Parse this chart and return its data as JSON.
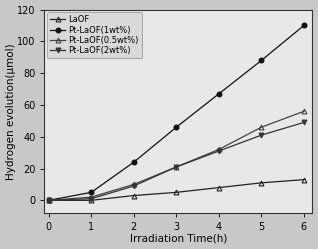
{
  "x": [
    0,
    1,
    2,
    3,
    4,
    5,
    6
  ],
  "series": [
    {
      "label": "LaOF",
      "y": [
        0,
        0,
        3,
        5,
        8,
        11,
        13
      ],
      "marker": "^",
      "fillstyle": "none",
      "linestyle": "-",
      "color": "#222222"
    },
    {
      "label": "Pt-LaOF(1wt%)",
      "y": [
        0,
        5,
        24,
        46,
        67,
        88,
        110
      ],
      "marker": "o",
      "fillstyle": "full",
      "linestyle": "-",
      "color": "#111111"
    },
    {
      "label": "Pt-LaOF(0.5wt%)",
      "y": [
        0,
        2,
        10,
        21,
        32,
        46,
        56
      ],
      "marker": "^",
      "fillstyle": "none",
      "linestyle": "-",
      "color": "#444444"
    },
    {
      "label": "Pt-LaOF(2wt%)",
      "y": [
        0,
        1,
        9,
        21,
        31,
        41,
        49
      ],
      "marker": "v",
      "fillstyle": "full",
      "linestyle": "-",
      "color": "#333333"
    }
  ],
  "xlabel": "Irradiation Time(h)",
  "ylabel": "Hydrogen evolution(μmol)",
  "ylim": [
    -8,
    120
  ],
  "xlim": [
    -0.1,
    6.2
  ],
  "yticks": [
    0,
    20,
    40,
    60,
    80,
    100,
    120
  ],
  "xticks": [
    0,
    1,
    2,
    3,
    4,
    5,
    6
  ],
  "legend_loc": "upper left",
  "label_fontsize": 7.5,
  "tick_fontsize": 7,
  "legend_fontsize": 6,
  "figure_facecolor": "#c8c8c8",
  "axes_facecolor": "#e8e8e8",
  "legend_facecolor": "#d8d8d8"
}
